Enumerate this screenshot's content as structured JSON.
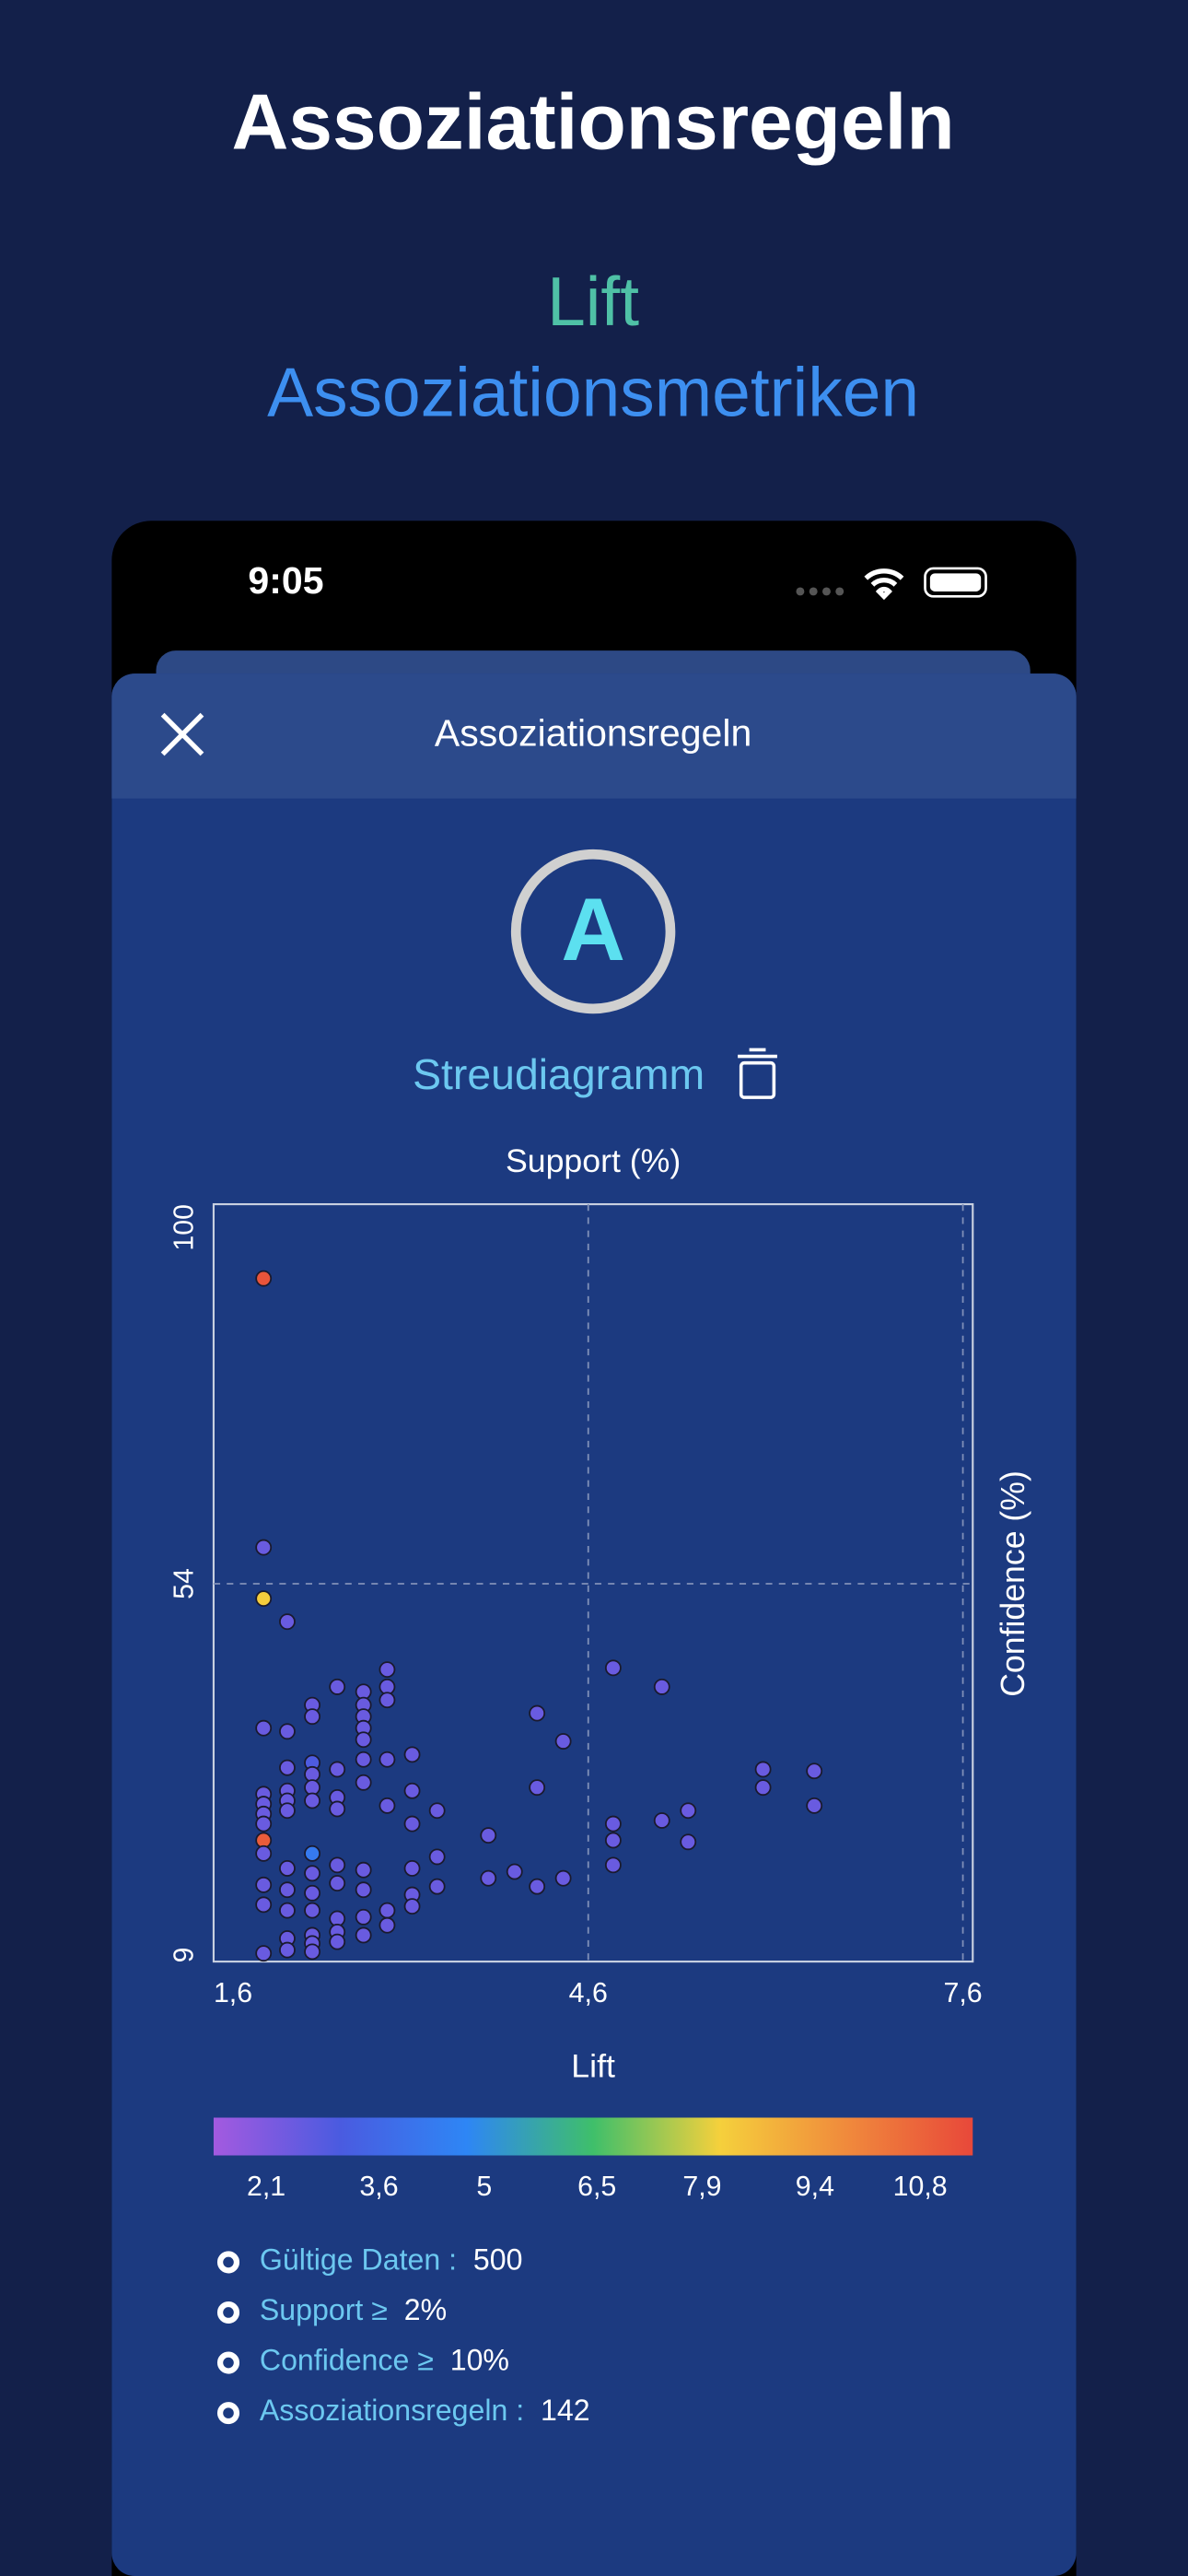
{
  "header": {
    "title": "Assoziationsregeln",
    "subtitle": "Lift",
    "tagline": "Assoziationsmetriken"
  },
  "status_bar": {
    "time": "9:05"
  },
  "sheet": {
    "title": "Assoziationsregeln",
    "logo": "A",
    "chart_name": "Streudiagramm"
  },
  "chart_data": {
    "type": "scatter",
    "title": "Support (%)",
    "xlabel": "Lift",
    "ylabel": "Confidence (%)",
    "x": [
      2.0,
      2.0,
      2.0,
      2.19,
      2.99,
      4.8,
      5.19,
      2.59,
      2.8,
      2.99,
      2.99,
      2.39,
      2.39,
      2.8,
      2.8,
      2.8,
      2.8,
      2.0,
      2.19,
      4.19,
      4.4,
      2.99,
      3.19,
      2.19,
      2.39,
      2.39,
      2.59,
      2.8,
      2.8,
      6.0,
      6.41,
      6.0,
      4.19,
      3.19,
      2.0,
      2.0,
      2.0,
      2.0,
      2.19,
      2.19,
      2.19,
      2.39,
      2.39,
      2.59,
      2.59,
      2.99,
      3.39,
      6.41,
      5.4,
      5.19,
      4.8,
      4.8,
      3.19,
      3.8,
      5.4,
      2.0,
      2.0,
      2.39,
      3.39,
      4.8,
      2.19,
      2.59,
      2.8,
      3.19,
      2.39,
      3.8,
      4.01,
      4.4,
      4.19,
      3.39,
      2.0,
      2.59,
      2.8,
      2.19,
      2.39,
      3.19,
      3.19,
      2.99,
      2.99,
      2.0,
      2.19,
      2.39,
      2.59,
      2.8,
      2.59,
      2.39,
      2.8,
      2.19,
      2.19,
      2.39,
      2.59,
      2.39,
      2.0
    ],
    "y": [
      91,
      58.4,
      52.2,
      49.4,
      43.6,
      43.8,
      41.5,
      41.5,
      40.9,
      41.5,
      39.9,
      39.3,
      37.9,
      39.3,
      37.9,
      36.5,
      35.1,
      36.5,
      36.1,
      38.3,
      34.9,
      32.7,
      33.3,
      31.7,
      32.3,
      30.9,
      31.5,
      32.7,
      29.9,
      31.5,
      31.3,
      29.3,
      29.3,
      28.9,
      28.5,
      27.3,
      26.1,
      24.9,
      28.9,
      27.7,
      26.5,
      29.3,
      27.7,
      28.1,
      26.7,
      27.1,
      26.5,
      27.1,
      26.5,
      25.3,
      24.9,
      22.9,
      24.9,
      23.5,
      22.7,
      22.9,
      21.3,
      21.3,
      20.9,
      19.9,
      19.5,
      19.9,
      19.3,
      19.5,
      18.9,
      18.3,
      19.1,
      18.3,
      17.3,
      17.3,
      17.5,
      17.7,
      16.9,
      16.9,
      16.5,
      16.3,
      14.9,
      14.4,
      12.6,
      15.1,
      14.4,
      14.4,
      13.4,
      13.6,
      11.8,
      11.4,
      11.4,
      11.0,
      9.6,
      10.4,
      10.6,
      9.4,
      9.2
    ],
    "color_values": [
      11.2,
      2.5,
      8.2,
      2.5,
      2.5,
      2.5,
      2.5,
      2.5,
      2.5,
      2.5,
      2.5,
      2.5,
      2.5,
      2.5,
      2.5,
      2.5,
      2.5,
      2.5,
      2.5,
      2.5,
      2.5,
      2.5,
      2.5,
      2.5,
      3.0,
      2.5,
      2.5,
      2.5,
      2.5,
      2.5,
      2.5,
      2.5,
      2.5,
      2.5,
      2.5,
      2.5,
      2.5,
      2.5,
      2.5,
      2.5,
      2.5,
      2.5,
      2.5,
      2.5,
      2.5,
      2.5,
      2.5,
      2.5,
      2.5,
      2.5,
      2.5,
      2.5,
      2.5,
      2.5,
      2.5,
      11.0,
      2.5,
      4.3,
      2.5,
      2.5,
      2.5,
      2.5,
      2.5,
      2.5,
      2.5,
      2.5,
      2.5,
      2.5,
      2.5,
      2.5,
      2.5,
      2.5,
      2.5,
      2.5,
      2.5,
      2.5,
      2.5,
      2.5,
      2.5,
      2.5,
      2.5,
      2.5,
      2.5,
      2.5,
      2.5,
      2.5,
      2.5,
      2.5,
      2.5,
      2.5,
      2.5,
      2.5,
      2.5
    ],
    "xlim": [
      1.6,
      7.6
    ],
    "xticks": [
      {
        "value": 1.6,
        "label": "1,6"
      },
      {
        "value": 4.6,
        "label": "4,6"
      },
      {
        "value": 7.6,
        "label": "7,6"
      }
    ],
    "ylim": [
      9,
      100
    ],
    "yticks": [
      9,
      54,
      100
    ],
    "grid": true,
    "colorscale": [
      "#a35ae0",
      "#4a5be0",
      "#2e86f5",
      "#3fbf6a",
      "#f5d03c",
      "#f08a3c",
      "#e8483a"
    ],
    "clim": [
      1.4,
      11.5
    ],
    "cticks": [
      {
        "value": 2.1,
        "label": "2,1"
      },
      {
        "value": 3.6,
        "label": "3,6"
      },
      5,
      {
        "value": 6.5,
        "label": "6,5"
      },
      {
        "value": 7.9,
        "label": "7,9"
      },
      {
        "value": 9.4,
        "label": "9,4"
      },
      {
        "value": 10.8,
        "label": "10,8"
      }
    ]
  },
  "stats": [
    {
      "label": "Gültige Daten :",
      "value": "500"
    },
    {
      "label": "Support ≥",
      "value": "2%"
    },
    {
      "label": "Confidence ≥",
      "value": "10%"
    },
    {
      "label": "Assoziationsregeln :",
      "value": "142"
    }
  ]
}
